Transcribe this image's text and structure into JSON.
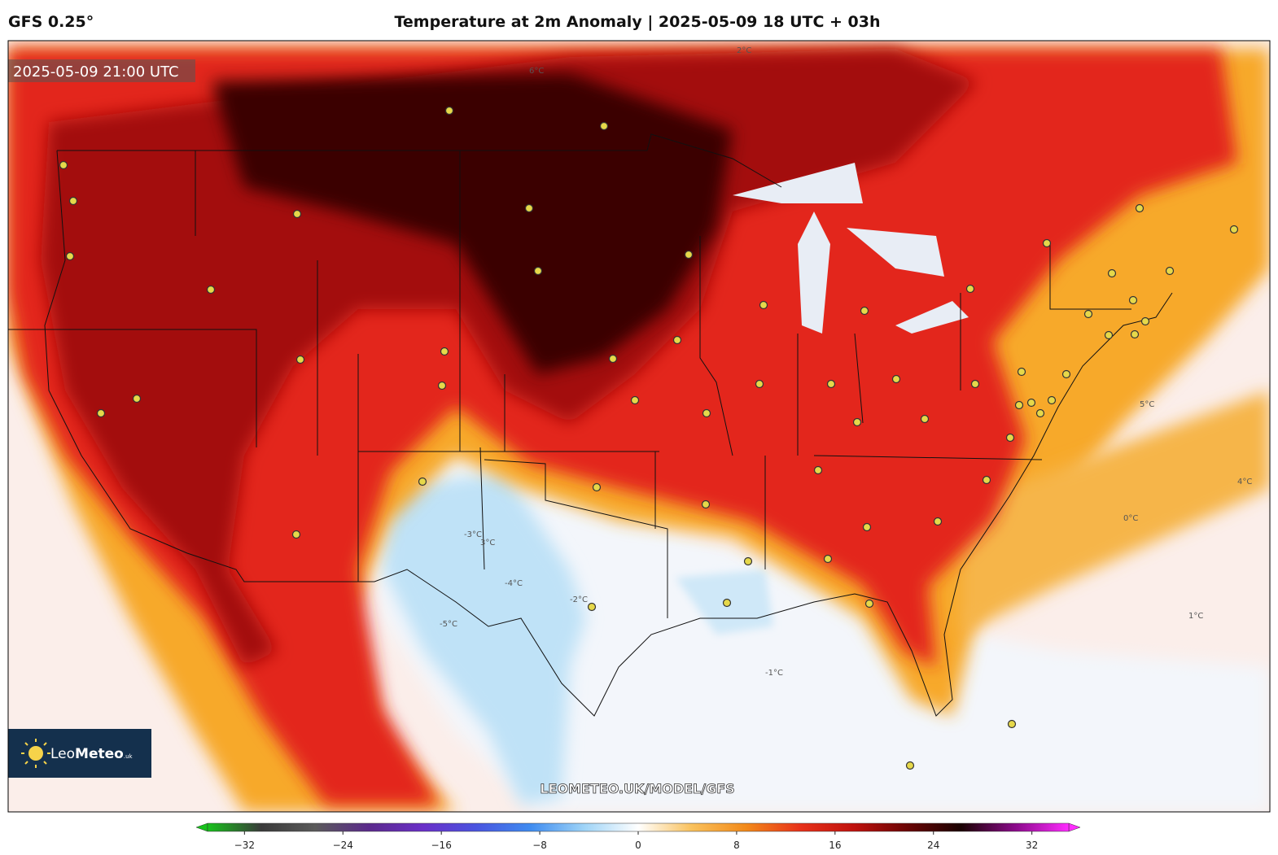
{
  "header": {
    "model": "GFS 0.25°",
    "title": "Temperature at 2m Anomaly | 2025-05-09 18 UTC + 03h"
  },
  "map": {
    "timestamp": "2025-05-09 21:00 UTC",
    "watermark": "LEOMETEO.UK/MODEL/GFS",
    "logo": "Leo",
    "logo_bold": "Meteo",
    "logo_suffix": ".uk",
    "contour_labels": [
      "0°C",
      "1°C",
      "2°C",
      "5°C",
      "6°C",
      "-1°C",
      "-3°C",
      "-4°C",
      "-5°C",
      "-2°C",
      "4°C",
      "3°C"
    ]
  },
  "colorbar": {
    "lim": [
      -35,
      35
    ],
    "colors": [
      "#18c21c",
      "#3a3a3a",
      "#5a5a5a",
      "#5b2a8c",
      "#6a2fc8",
      "#4a55e0",
      "#3f8cf0",
      "#9fd4f7",
      "#ffffff",
      "#f9c15c",
      "#f28a1a",
      "#e8321a",
      "#c0120e",
      "#6a0505",
      "#1a0202",
      "#8a0a8a",
      "#ff2cff"
    ],
    "ticks": [
      {
        "value": -32,
        "label": "−32"
      },
      {
        "value": -24,
        "label": "−24"
      },
      {
        "value": -16,
        "label": "−16"
      },
      {
        "value": -8,
        "label": "−8"
      },
      0,
      8,
      16,
      24,
      32
    ]
  }
}
